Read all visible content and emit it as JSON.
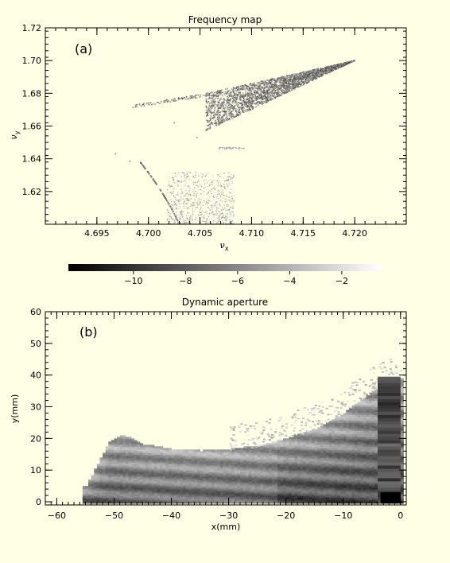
{
  "chart_data": [
    {
      "type": "scatter",
      "title": "Frequency map",
      "panel_label": "(a)",
      "xlabel_symbol": "ν",
      "xlabel_sub": "x",
      "ylabel_symbol": "ν",
      "ylabel_sub": "y",
      "xlim": [
        4.69,
        4.725
      ],
      "ylim": [
        1.6,
        1.72
      ],
      "x_ticks": [
        "4.695",
        "4.700",
        "4.705",
        "4.710",
        "4.715",
        "4.720"
      ],
      "x_tick_values": [
        4.695,
        4.7,
        4.705,
        4.71,
        4.715,
        4.72
      ],
      "y_ticks": [
        "1.62",
        "1.64",
        "1.66",
        "1.68",
        "1.70",
        "1.72"
      ],
      "y_tick_values": [
        1.62,
        1.64,
        1.66,
        1.68,
        1.7,
        1.72
      ],
      "point_color": "#444444",
      "point_groups": [
        {
          "name": "main-wedge",
          "x": [
            4.7055,
            4.72
          ],
          "y": [
            1.655,
            1.7
          ]
        },
        {
          "name": "upper-arm",
          "x": [
            4.6985,
            4.7058
          ],
          "y": [
            1.672,
            1.68
          ]
        },
        {
          "name": "lower-arc",
          "x": [
            4.699,
            4.703
          ],
          "y": [
            1.6,
            1.64
          ]
        },
        {
          "name": "diffuse-cloud",
          "x": [
            4.702,
            4.708
          ],
          "y": [
            1.6,
            1.63
          ]
        }
      ]
    },
    {
      "type": "heatmap",
      "title": "Dynamic aperture",
      "panel_label": "(b)",
      "xlabel": "x(mm)",
      "ylabel": "y(mm)",
      "xlim": [
        -62,
        1
      ],
      "ylim": [
        -1,
        60
      ],
      "x_ticks": [
        "−60",
        "−50",
        "−40",
        "−30",
        "−20",
        "−10",
        "0"
      ],
      "x_tick_values": [
        -60,
        -50,
        -40,
        -30,
        -20,
        -10,
        0
      ],
      "y_ticks": [
        "0",
        "10",
        "20",
        "30",
        "40",
        "50",
        "60"
      ],
      "y_tick_values": [
        0,
        10,
        20,
        30,
        40,
        50,
        60
      ],
      "boundary": {
        "x": [
          -55,
          -53,
          -51,
          -49,
          -47,
          -45,
          -40,
          -35,
          -30,
          -25,
          -20,
          -15,
          -10,
          -5,
          0
        ],
        "y_top": [
          5,
          12,
          19,
          21,
          20,
          18,
          16.5,
          16,
          16.5,
          17.5,
          20,
          23,
          28,
          35,
          39
        ]
      }
    }
  ],
  "colorbar": {
    "range": [
      -12.5,
      -0.5
    ],
    "ticks": [
      "−10",
      "−8",
      "−6",
      "−4",
      "−2"
    ],
    "tick_values": [
      -10,
      -8,
      -6,
      -4,
      -2
    ]
  }
}
